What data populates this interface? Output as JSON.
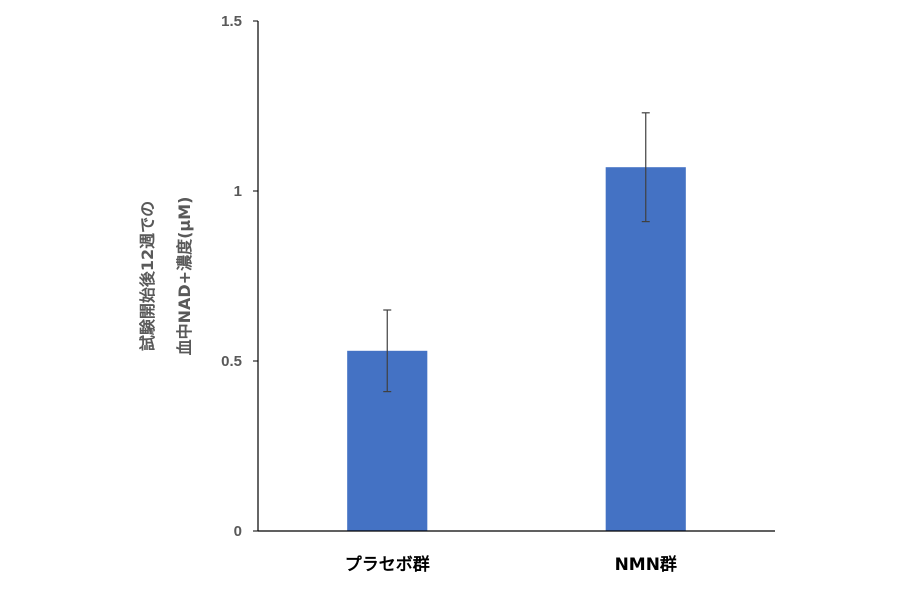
{
  "chart_data": {
    "type": "bar",
    "categories": [
      "プラセボ群",
      "NMN群"
    ],
    "values": [
      0.53,
      1.07
    ],
    "errors": [
      0.12,
      0.16
    ],
    "ylabel_lines": [
      "試験開始後12週での",
      "血中NAD+濃度(μM)"
    ],
    "yticks": [
      "0",
      "0.5",
      "1",
      "1.5"
    ],
    "ylim": [
      0,
      1.5
    ],
    "grid": false,
    "legend": "none",
    "colors": {
      "bar": "#4472C4",
      "axis": "#000000",
      "error": "#404040",
      "tick_text": "#595959"
    }
  }
}
